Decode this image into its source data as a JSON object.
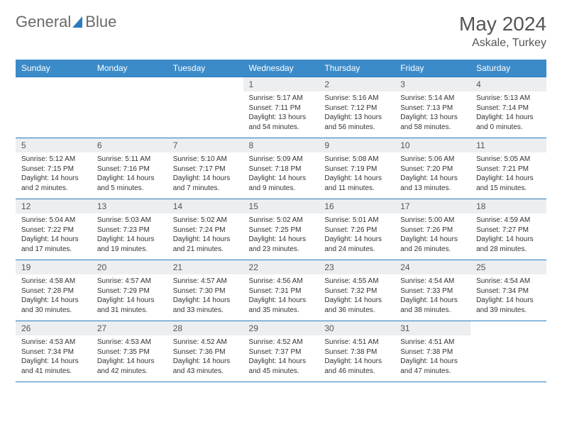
{
  "logo": {
    "text1": "General",
    "text2": "Blue"
  },
  "title": "May 2024",
  "location": "Askale, Turkey",
  "colors": {
    "header_bg": "#3b8bc9",
    "week_border": "#2b7bbd",
    "daynum_bg": "#eceef0",
    "page_bg": "#ffffff",
    "text": "#333333",
    "logo_gray": "#6a6a6a"
  },
  "dayNames": [
    "Sunday",
    "Monday",
    "Tuesday",
    "Wednesday",
    "Thursday",
    "Friday",
    "Saturday"
  ],
  "weeks": [
    [
      {
        "n": "",
        "sunrise": "",
        "sunset": "",
        "daylight": ""
      },
      {
        "n": "",
        "sunrise": "",
        "sunset": "",
        "daylight": ""
      },
      {
        "n": "",
        "sunrise": "",
        "sunset": "",
        "daylight": ""
      },
      {
        "n": "1",
        "sunrise": "5:17 AM",
        "sunset": "7:11 PM",
        "daylight": "13 hours and 54 minutes."
      },
      {
        "n": "2",
        "sunrise": "5:16 AM",
        "sunset": "7:12 PM",
        "daylight": "13 hours and 56 minutes."
      },
      {
        "n": "3",
        "sunrise": "5:14 AM",
        "sunset": "7:13 PM",
        "daylight": "13 hours and 58 minutes."
      },
      {
        "n": "4",
        "sunrise": "5:13 AM",
        "sunset": "7:14 PM",
        "daylight": "14 hours and 0 minutes."
      }
    ],
    [
      {
        "n": "5",
        "sunrise": "5:12 AM",
        "sunset": "7:15 PM",
        "daylight": "14 hours and 2 minutes."
      },
      {
        "n": "6",
        "sunrise": "5:11 AM",
        "sunset": "7:16 PM",
        "daylight": "14 hours and 5 minutes."
      },
      {
        "n": "7",
        "sunrise": "5:10 AM",
        "sunset": "7:17 PM",
        "daylight": "14 hours and 7 minutes."
      },
      {
        "n": "8",
        "sunrise": "5:09 AM",
        "sunset": "7:18 PM",
        "daylight": "14 hours and 9 minutes."
      },
      {
        "n": "9",
        "sunrise": "5:08 AM",
        "sunset": "7:19 PM",
        "daylight": "14 hours and 11 minutes."
      },
      {
        "n": "10",
        "sunrise": "5:06 AM",
        "sunset": "7:20 PM",
        "daylight": "14 hours and 13 minutes."
      },
      {
        "n": "11",
        "sunrise": "5:05 AM",
        "sunset": "7:21 PM",
        "daylight": "14 hours and 15 minutes."
      }
    ],
    [
      {
        "n": "12",
        "sunrise": "5:04 AM",
        "sunset": "7:22 PM",
        "daylight": "14 hours and 17 minutes."
      },
      {
        "n": "13",
        "sunrise": "5:03 AM",
        "sunset": "7:23 PM",
        "daylight": "14 hours and 19 minutes."
      },
      {
        "n": "14",
        "sunrise": "5:02 AM",
        "sunset": "7:24 PM",
        "daylight": "14 hours and 21 minutes."
      },
      {
        "n": "15",
        "sunrise": "5:02 AM",
        "sunset": "7:25 PM",
        "daylight": "14 hours and 23 minutes."
      },
      {
        "n": "16",
        "sunrise": "5:01 AM",
        "sunset": "7:26 PM",
        "daylight": "14 hours and 24 minutes."
      },
      {
        "n": "17",
        "sunrise": "5:00 AM",
        "sunset": "7:26 PM",
        "daylight": "14 hours and 26 minutes."
      },
      {
        "n": "18",
        "sunrise": "4:59 AM",
        "sunset": "7:27 PM",
        "daylight": "14 hours and 28 minutes."
      }
    ],
    [
      {
        "n": "19",
        "sunrise": "4:58 AM",
        "sunset": "7:28 PM",
        "daylight": "14 hours and 30 minutes."
      },
      {
        "n": "20",
        "sunrise": "4:57 AM",
        "sunset": "7:29 PM",
        "daylight": "14 hours and 31 minutes."
      },
      {
        "n": "21",
        "sunrise": "4:57 AM",
        "sunset": "7:30 PM",
        "daylight": "14 hours and 33 minutes."
      },
      {
        "n": "22",
        "sunrise": "4:56 AM",
        "sunset": "7:31 PM",
        "daylight": "14 hours and 35 minutes."
      },
      {
        "n": "23",
        "sunrise": "4:55 AM",
        "sunset": "7:32 PM",
        "daylight": "14 hours and 36 minutes."
      },
      {
        "n": "24",
        "sunrise": "4:54 AM",
        "sunset": "7:33 PM",
        "daylight": "14 hours and 38 minutes."
      },
      {
        "n": "25",
        "sunrise": "4:54 AM",
        "sunset": "7:34 PM",
        "daylight": "14 hours and 39 minutes."
      }
    ],
    [
      {
        "n": "26",
        "sunrise": "4:53 AM",
        "sunset": "7:34 PM",
        "daylight": "14 hours and 41 minutes."
      },
      {
        "n": "27",
        "sunrise": "4:53 AM",
        "sunset": "7:35 PM",
        "daylight": "14 hours and 42 minutes."
      },
      {
        "n": "28",
        "sunrise": "4:52 AM",
        "sunset": "7:36 PM",
        "daylight": "14 hours and 43 minutes."
      },
      {
        "n": "29",
        "sunrise": "4:52 AM",
        "sunset": "7:37 PM",
        "daylight": "14 hours and 45 minutes."
      },
      {
        "n": "30",
        "sunrise": "4:51 AM",
        "sunset": "7:38 PM",
        "daylight": "14 hours and 46 minutes."
      },
      {
        "n": "31",
        "sunrise": "4:51 AM",
        "sunset": "7:38 PM",
        "daylight": "14 hours and 47 minutes."
      },
      {
        "n": "",
        "sunrise": "",
        "sunset": "",
        "daylight": ""
      }
    ]
  ],
  "labels": {
    "sunrise": "Sunrise:",
    "sunset": "Sunset:",
    "daylight": "Daylight:"
  }
}
